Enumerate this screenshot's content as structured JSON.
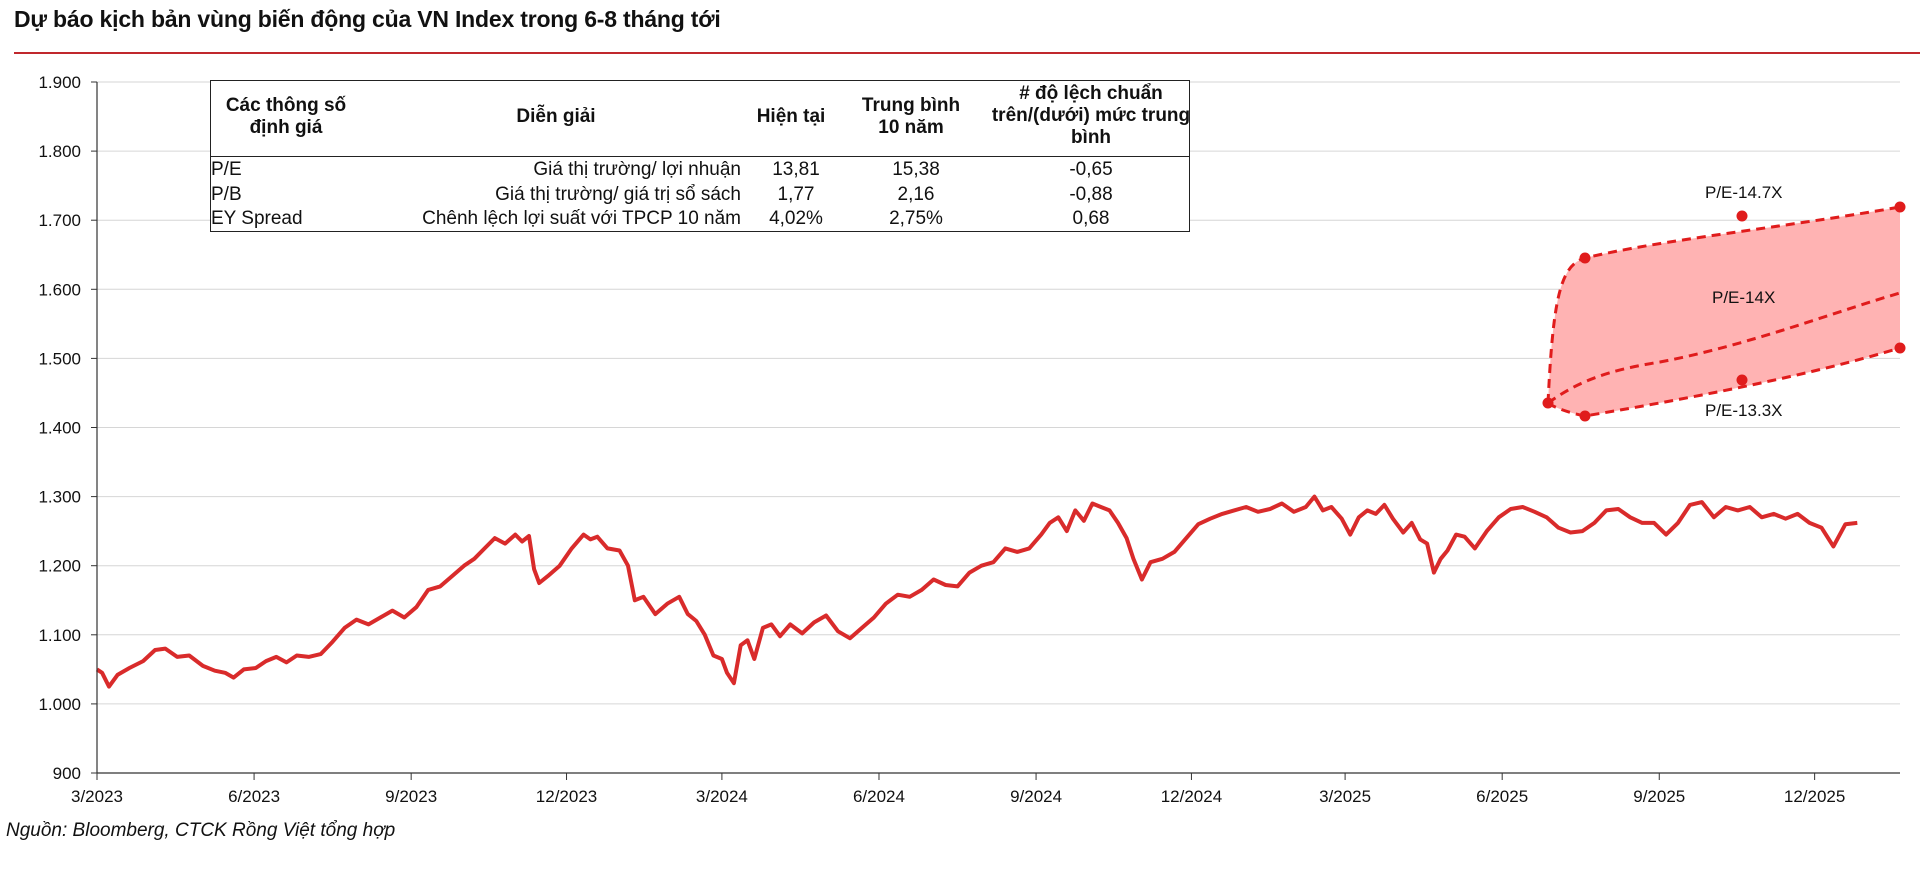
{
  "header": {
    "title": "Dự báo kịch bản vùng biến động của VN Index trong 6-8 tháng tới"
  },
  "footer": {
    "source": "Nguồn: Bloomberg, CTCK Rồng Việt tổng hợp"
  },
  "valuation_table": {
    "headers": {
      "param_line1": "Các thông số",
      "param_line2": "định giá",
      "desc": "Diễn  giải",
      "current": "Hiện tại",
      "avg_line1": "Trung bình",
      "avg_line2": "10 năm",
      "dev_line1": "# độ lệch chuẩn",
      "dev_line2": "trên/(dưới) mức trung",
      "dev_line3": "bình"
    },
    "rows": [
      {
        "param": "P/E",
        "desc": "Giá thị trường/ lợi nhuận",
        "current": "13,81",
        "avg": "15,38",
        "dev": "-0,65"
      },
      {
        "param": "P/B",
        "desc": "Giá thị trường/ giá trị sổ sách",
        "current": "1,77",
        "avg": "2,16",
        "dev": "-0,88"
      },
      {
        "param": "EY Spread",
        "desc": "Chênh lệch lợi suất với TPCP 10 năm",
        "current": "4,02%",
        "avg": "2,75%",
        "dev": "0,68"
      }
    ]
  },
  "chart_data": {
    "type": "line",
    "ylim": [
      900,
      1900
    ],
    "yticks": [
      900,
      1000,
      1100,
      1200,
      1300,
      1400,
      1500,
      1600,
      1700,
      1800,
      1900
    ],
    "ytick_labels": [
      "900",
      "1.000",
      "1.100",
      "1.200",
      "1.300",
      "1.400",
      "1.500",
      "1.600",
      "1.700",
      "1.800",
      "1.900"
    ],
    "xlim": [
      "2023-03-01",
      "2026-01-20"
    ],
    "xticks": [
      "2023-03-01",
      "2023-06-01",
      "2023-09-01",
      "2023-12-01",
      "2024-03-01",
      "2024-06-01",
      "2024-09-01",
      "2024-12-01",
      "2025-03-01",
      "2025-06-01",
      "2025-09-01",
      "2025-12-01"
    ],
    "xtick_labels": [
      "3/2023",
      "6/2023",
      "9/2023",
      "12/2023",
      "3/2024",
      "6/2024",
      "9/2024",
      "12/2024",
      "3/2025",
      "6/2025",
      "9/2025",
      "12/2025"
    ],
    "grid": "horizontal",
    "colors": {
      "line": "#d92b2b",
      "band_fill": "#ffb3b3",
      "marker": "#e01c1c",
      "grid": "#d6d6d6",
      "axis": "#333333"
    },
    "series": [
      {
        "type": "line",
        "points": [
          [
            "2023-03-01",
            1050
          ],
          [
            "2023-03-04",
            1045
          ],
          [
            "2023-03-08",
            1025
          ],
          [
            "2023-03-13",
            1042
          ],
          [
            "2023-03-20",
            1052
          ],
          [
            "2023-03-28",
            1062
          ],
          [
            "2023-04-04",
            1078
          ],
          [
            "2023-04-10",
            1080
          ],
          [
            "2023-04-17",
            1068
          ],
          [
            "2023-04-24",
            1070
          ],
          [
            "2023-05-02",
            1055
          ],
          [
            "2023-05-09",
            1048
          ],
          [
            "2023-05-15",
            1045
          ],
          [
            "2023-05-20",
            1038
          ],
          [
            "2023-05-26",
            1050
          ],
          [
            "2023-06-02",
            1052
          ],
          [
            "2023-06-08",
            1062
          ],
          [
            "2023-06-14",
            1068
          ],
          [
            "2023-06-20",
            1060
          ],
          [
            "2023-06-26",
            1070
          ],
          [
            "2023-07-03",
            1068
          ],
          [
            "2023-07-10",
            1072
          ],
          [
            "2023-07-17",
            1090
          ],
          [
            "2023-07-24",
            1110
          ],
          [
            "2023-07-31",
            1122
          ],
          [
            "2023-08-07",
            1115
          ],
          [
            "2023-08-14",
            1125
          ],
          [
            "2023-08-21",
            1135
          ],
          [
            "2023-08-28",
            1125
          ],
          [
            "2023-09-04",
            1140
          ],
          [
            "2023-09-11",
            1165
          ],
          [
            "2023-09-18",
            1170
          ],
          [
            "2023-09-25",
            1185
          ],
          [
            "2023-10-02",
            1200
          ],
          [
            "2023-10-08",
            1210
          ],
          [
            "2023-10-14",
            1225
          ],
          [
            "2023-10-20",
            1240
          ],
          [
            "2023-10-26",
            1232
          ],
          [
            "2023-11-01",
            1245
          ],
          [
            "2023-11-05",
            1235
          ],
          [
            "2023-11-09",
            1243
          ],
          [
            "2023-11-12",
            1195
          ],
          [
            "2023-11-15",
            1175
          ],
          [
            "2023-11-20",
            1185
          ],
          [
            "2023-11-27",
            1200
          ],
          [
            "2023-12-04",
            1225
          ],
          [
            "2023-12-11",
            1245
          ],
          [
            "2023-12-15",
            1238
          ],
          [
            "2023-12-19",
            1242
          ],
          [
            "2023-12-25",
            1225
          ],
          [
            "2024-01-01",
            1222
          ],
          [
            "2024-01-06",
            1200
          ],
          [
            "2024-01-10",
            1150
          ],
          [
            "2024-01-15",
            1155
          ],
          [
            "2024-01-22",
            1130
          ],
          [
            "2024-01-29",
            1145
          ],
          [
            "2024-02-05",
            1155
          ],
          [
            "2024-02-10",
            1130
          ],
          [
            "2024-02-15",
            1120
          ],
          [
            "2024-02-20",
            1100
          ],
          [
            "2024-02-25",
            1070
          ],
          [
            "2024-03-01",
            1065
          ],
          [
            "2024-03-04",
            1045
          ],
          [
            "2024-03-08",
            1030
          ],
          [
            "2024-03-12",
            1085
          ],
          [
            "2024-03-16",
            1092
          ],
          [
            "2024-03-20",
            1065
          ],
          [
            "2024-03-25",
            1110
          ],
          [
            "2024-03-30",
            1115
          ],
          [
            "2024-04-04",
            1098
          ],
          [
            "2024-04-10",
            1115
          ],
          [
            "2024-04-17",
            1102
          ],
          [
            "2024-04-24",
            1118
          ],
          [
            "2024-05-01",
            1128
          ],
          [
            "2024-05-08",
            1105
          ],
          [
            "2024-05-15",
            1095
          ],
          [
            "2024-05-22",
            1110
          ],
          [
            "2024-05-29",
            1125
          ],
          [
            "2024-06-05",
            1145
          ],
          [
            "2024-06-12",
            1158
          ],
          [
            "2024-06-19",
            1155
          ],
          [
            "2024-06-26",
            1165
          ],
          [
            "2024-07-03",
            1180
          ],
          [
            "2024-07-10",
            1172
          ],
          [
            "2024-07-17",
            1170
          ],
          [
            "2024-07-24",
            1190
          ],
          [
            "2024-07-31",
            1200
          ],
          [
            "2024-08-07",
            1205
          ],
          [
            "2024-08-14",
            1225
          ],
          [
            "2024-08-21",
            1220
          ],
          [
            "2024-08-28",
            1225
          ],
          [
            "2024-09-04",
            1245
          ],
          [
            "2024-09-09",
            1262
          ],
          [
            "2024-09-14",
            1270
          ],
          [
            "2024-09-19",
            1250
          ],
          [
            "2024-09-24",
            1280
          ],
          [
            "2024-09-29",
            1265
          ],
          [
            "2024-10-04",
            1290
          ],
          [
            "2024-10-09",
            1285
          ],
          [
            "2024-10-14",
            1280
          ],
          [
            "2024-10-19",
            1262
          ],
          [
            "2024-10-24",
            1240
          ],
          [
            "2024-10-28",
            1210
          ],
          [
            "2024-11-02",
            1180
          ],
          [
            "2024-11-07",
            1205
          ],
          [
            "2024-11-14",
            1210
          ],
          [
            "2024-11-21",
            1220
          ],
          [
            "2024-11-28",
            1240
          ],
          [
            "2024-12-05",
            1260
          ],
          [
            "2024-12-12",
            1268
          ],
          [
            "2024-12-19",
            1275
          ],
          [
            "2024-12-26",
            1280
          ],
          [
            "2025-01-02",
            1285
          ],
          [
            "2025-01-09",
            1278
          ],
          [
            "2025-01-16",
            1282
          ],
          [
            "2025-01-23",
            1290
          ],
          [
            "2025-01-30",
            1278
          ],
          [
            "2025-02-06",
            1285
          ],
          [
            "2025-02-11",
            1300
          ],
          [
            "2025-02-16",
            1280
          ],
          [
            "2025-02-21",
            1285
          ],
          [
            "2025-02-27",
            1268
          ],
          [
            "2025-03-04",
            1245
          ],
          [
            "2025-03-09",
            1270
          ],
          [
            "2025-03-14",
            1280
          ],
          [
            "2025-03-19",
            1275
          ],
          [
            "2025-03-24",
            1288
          ],
          [
            "2025-03-29",
            1268
          ],
          [
            "2025-04-04",
            1248
          ],
          [
            "2025-04-09",
            1262
          ],
          [
            "2025-04-14",
            1238
          ],
          [
            "2025-04-18",
            1232
          ],
          [
            "2025-04-22",
            1190
          ],
          [
            "2025-04-26",
            1210
          ],
          [
            "2025-04-30",
            1222
          ],
          [
            "2025-05-05",
            1245
          ],
          [
            "2025-05-10",
            1242
          ],
          [
            "2025-05-16",
            1225
          ],
          [
            "2025-05-23",
            1250
          ],
          [
            "2025-05-30",
            1270
          ],
          [
            "2025-06-06",
            1282
          ],
          [
            "2025-06-13",
            1285
          ],
          [
            "2025-06-20",
            1278
          ],
          [
            "2025-06-27",
            1270
          ],
          [
            "2025-07-04",
            1255
          ],
          [
            "2025-07-11",
            1248
          ],
          [
            "2025-07-18",
            1250
          ],
          [
            "2025-07-25",
            1262
          ],
          [
            "2025-08-01",
            1280
          ],
          [
            "2025-08-08",
            1282
          ],
          [
            "2025-08-15",
            1270
          ],
          [
            "2025-08-22",
            1262
          ],
          [
            "2025-08-29",
            1262
          ],
          [
            "2025-09-05",
            1245
          ],
          [
            "2025-09-12",
            1262
          ],
          [
            "2025-09-19",
            1288
          ],
          [
            "2025-09-26",
            1292
          ],
          [
            "2025-10-03",
            1270
          ],
          [
            "2025-10-10",
            1285
          ],
          [
            "2025-10-17",
            1280
          ],
          [
            "2025-10-24",
            1285
          ],
          [
            "2025-10-31",
            1270
          ],
          [
            "2025-11-07",
            1275
          ],
          [
            "2025-11-14",
            1268
          ],
          [
            "2025-11-21",
            1275
          ],
          [
            "2025-11-28",
            1262
          ],
          [
            "2025-12-05",
            1255
          ],
          [
            "2025-12-12",
            1228
          ],
          [
            "2025-12-19",
            1260
          ],
          [
            "2025-12-26",
            1262
          ]
        ]
      }
    ]
  },
  "forecast": {
    "labels": {
      "upper": "P/E-14.7X",
      "mid": "P/E-14X",
      "lower": "P/E-13.3X"
    }
  }
}
